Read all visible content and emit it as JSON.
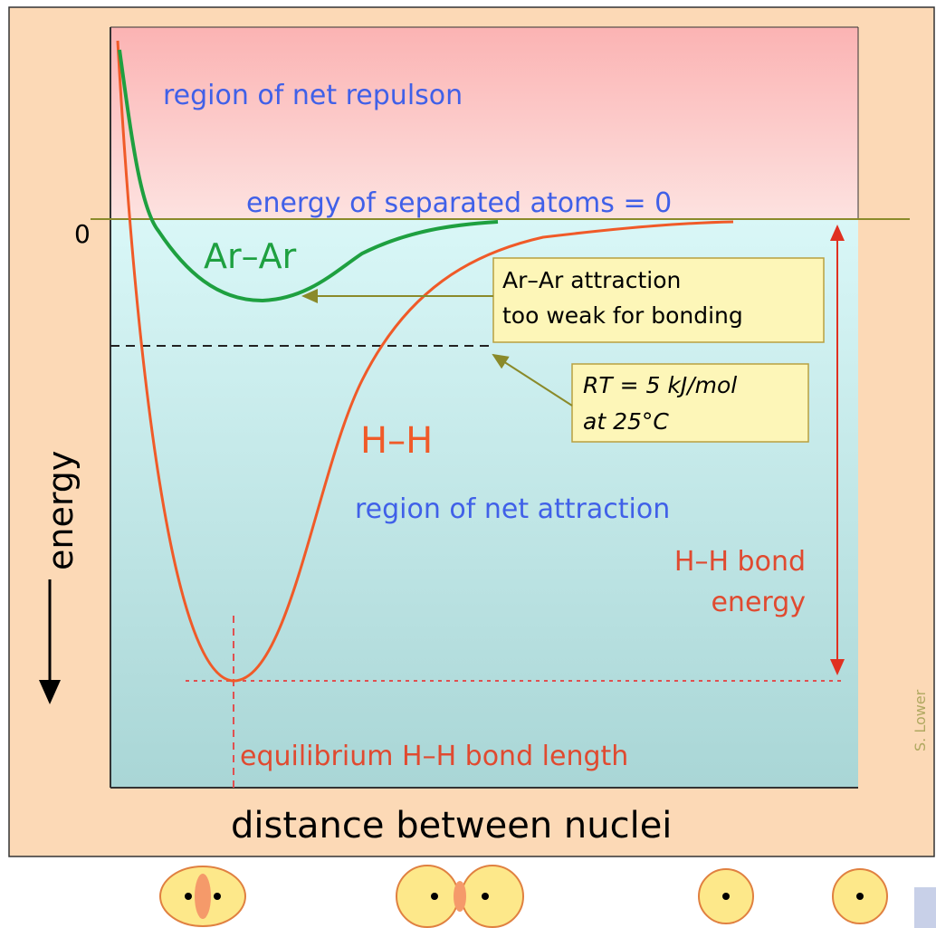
{
  "diagram": {
    "zero_label": "0",
    "regions": {
      "repulsion": "region of net repulson",
      "attraction": "region of net attraction"
    },
    "baseline_label": "energy of separated atoms = 0",
    "curves": {
      "ar_ar": "Ar–Ar",
      "h_h": "H–H"
    },
    "callouts": {
      "ar_ar": [
        "Ar–Ar attraction",
        "too weak for bonding"
      ],
      "rt": [
        "RT = 5 kJ/mol",
        "at 25°C"
      ]
    },
    "bond_energy": [
      "H–H bond",
      "energy"
    ],
    "equilibrium_label": "equilibrium H–H bond length",
    "y_axis_label": "energy",
    "x_axis_label": "distance between nuclei",
    "credit": "S. Lower"
  }
}
